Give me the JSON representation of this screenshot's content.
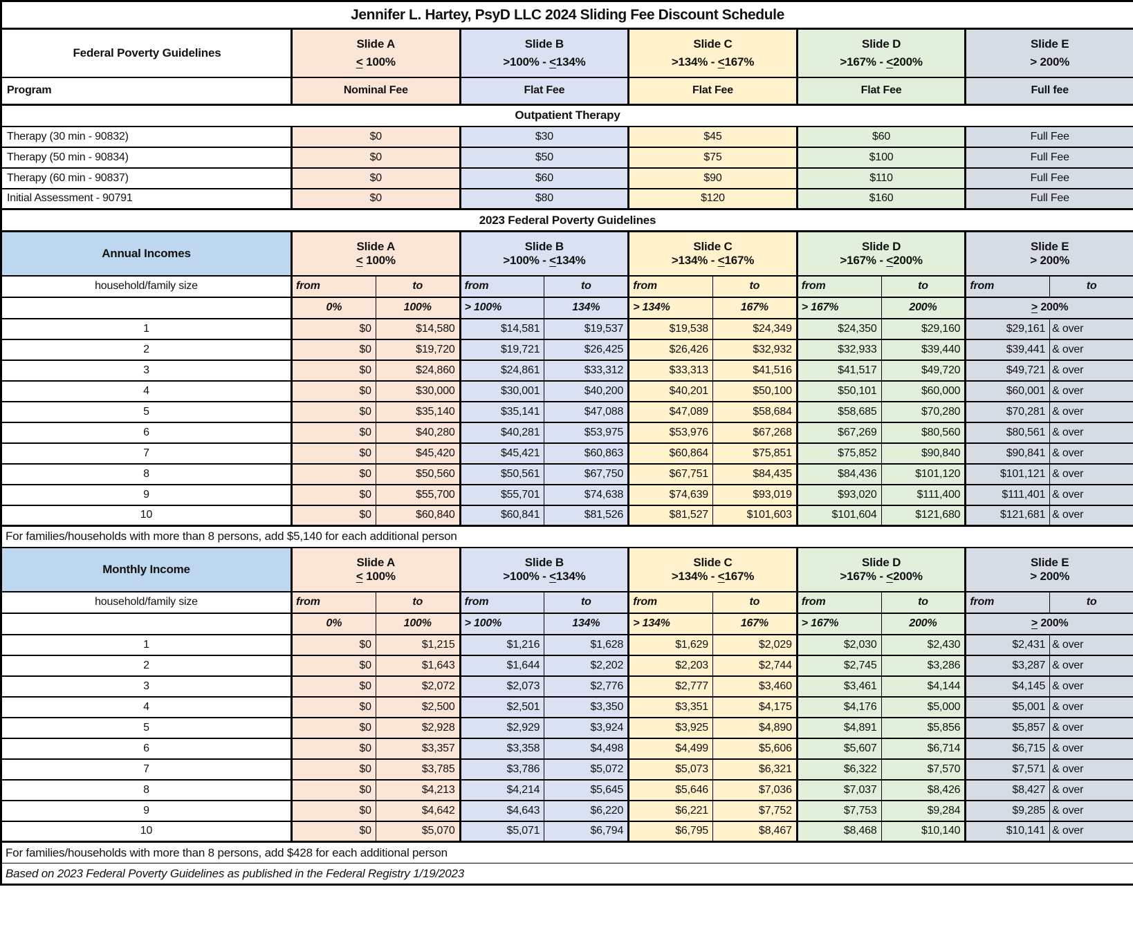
{
  "title": "Jennifer L. Hartey, PsyD LLC 2024 Sliding Fee Discount Schedule",
  "colors": {
    "slide_a_bg": "#FBE5D6",
    "slide_b_bg": "#D9E1F2",
    "slide_c_bg": "#FFF2CC",
    "slide_d_bg": "#E2EFDA",
    "slide_e_bg": "#D6DCE4",
    "income_header_bg": "#BDD7EE",
    "border": "#000000",
    "text": "#111111"
  },
  "slides": [
    {
      "label": "Slide A",
      "range": "≤ 100%",
      "program": "Nominal Fee"
    },
    {
      "label": "Slide B",
      "range": ">100%  -  ≤134%",
      "program": "Flat Fee"
    },
    {
      "label": "Slide C",
      "range": ">134%  -  ≤167%",
      "program": "Flat Fee"
    },
    {
      "label": "Slide D",
      "range": ">167%  -  ≤200%",
      "program": "Flat Fee"
    },
    {
      "label": "Slide E",
      "range": "> 200%",
      "program": "Full fee"
    }
  ],
  "fee_table": {
    "col1_header": "Federal Poverty Guidelines",
    "program_label": "Program",
    "section_title": "Outpatient Therapy",
    "rows": [
      {
        "label": "Therapy (30 min - 90832)",
        "fees": [
          "$0",
          "$30",
          "$45",
          "$60",
          "Full Fee"
        ]
      },
      {
        "label": "Therapy (50 min - 90834)",
        "fees": [
          "$0",
          "$50",
          "$75",
          "$100",
          "Full Fee"
        ]
      },
      {
        "label": "Therapy (60 min - 90837)",
        "fees": [
          "$0",
          "$60",
          "$90",
          "$110",
          "Full Fee"
        ]
      },
      {
        "label": "Initial Assessment - 90791",
        "fees": [
          "$0",
          "$80",
          "$120",
          "$160",
          "Full Fee"
        ]
      }
    ]
  },
  "fpg_title": "2023 Federal Poverty Guidelines",
  "labels": {
    "household": "household/family size",
    "from": "from",
    "to": "to"
  },
  "pct_headers": [
    "0%",
    "100%",
    "> 100%",
    "134%",
    "> 134%",
    "167%",
    "> 167%",
    "200%",
    "≥ 200%"
  ],
  "annual": {
    "header": "Annual Incomes",
    "note": "For families/households with more than 8 persons, add $5,140 for each additional person",
    "rows": [
      {
        "size": "1",
        "values": [
          "$0",
          "$14,580",
          "$14,581",
          "$19,537",
          "$19,538",
          "$24,349",
          "$24,350",
          "$29,160",
          "$29,161",
          "& over"
        ]
      },
      {
        "size": "2",
        "values": [
          "$0",
          "$19,720",
          "$19,721",
          "$26,425",
          "$26,426",
          "$32,932",
          "$32,933",
          "$39,440",
          "$39,441",
          "& over"
        ]
      },
      {
        "size": "3",
        "values": [
          "$0",
          "$24,860",
          "$24,861",
          "$33,312",
          "$33,313",
          "$41,516",
          "$41,517",
          "$49,720",
          "$49,721",
          "& over"
        ]
      },
      {
        "size": "4",
        "values": [
          "$0",
          "$30,000",
          "$30,001",
          "$40,200",
          "$40,201",
          "$50,100",
          "$50,101",
          "$60,000",
          "$60,001",
          "& over"
        ]
      },
      {
        "size": "5",
        "values": [
          "$0",
          "$35,140",
          "$35,141",
          "$47,088",
          "$47,089",
          "$58,684",
          "$58,685",
          "$70,280",
          "$70,281",
          "& over"
        ]
      },
      {
        "size": "6",
        "values": [
          "$0",
          "$40,280",
          "$40,281",
          "$53,975",
          "$53,976",
          "$67,268",
          "$67,269",
          "$80,560",
          "$80,561",
          "& over"
        ]
      },
      {
        "size": "7",
        "values": [
          "$0",
          "$45,420",
          "$45,421",
          "$60,863",
          "$60,864",
          "$75,851",
          "$75,852",
          "$90,840",
          "$90,841",
          "& over"
        ]
      },
      {
        "size": "8",
        "values": [
          "$0",
          "$50,560",
          "$50,561",
          "$67,750",
          "$67,751",
          "$84,435",
          "$84,436",
          "$101,120",
          "$101,121",
          "& over"
        ]
      },
      {
        "size": "9",
        "values": [
          "$0",
          "$55,700",
          "$55,701",
          "$74,638",
          "$74,639",
          "$93,019",
          "$93,020",
          "$111,400",
          "$111,401",
          "& over"
        ]
      },
      {
        "size": "10",
        "values": [
          "$0",
          "$60,840",
          "$60,841",
          "$81,526",
          "$81,527",
          "$101,603",
          "$101,604",
          "$121,680",
          "$121,681",
          "& over"
        ]
      }
    ]
  },
  "monthly": {
    "header": "Monthly Income",
    "note": "For families/households with more than 8 persons, add $428 for each additional person",
    "rows": [
      {
        "size": "1",
        "values": [
          "$0",
          "$1,215",
          "$1,216",
          "$1,628",
          "$1,629",
          "$2,029",
          "$2,030",
          "$2,430",
          "$2,431",
          "& over"
        ]
      },
      {
        "size": "2",
        "values": [
          "$0",
          "$1,643",
          "$1,644",
          "$2,202",
          "$2,203",
          "$2,744",
          "$2,745",
          "$3,286",
          "$3,287",
          "& over"
        ]
      },
      {
        "size": "3",
        "values": [
          "$0",
          "$2,072",
          "$2,073",
          "$2,776",
          "$2,777",
          "$3,460",
          "$3,461",
          "$4,144",
          "$4,145",
          "& over"
        ]
      },
      {
        "size": "4",
        "values": [
          "$0",
          "$2,500",
          "$2,501",
          "$3,350",
          "$3,351",
          "$4,175",
          "$4,176",
          "$5,000",
          "$5,001",
          "& over"
        ]
      },
      {
        "size": "5",
        "values": [
          "$0",
          "$2,928",
          "$2,929",
          "$3,924",
          "$3,925",
          "$4,890",
          "$4,891",
          "$5,856",
          "$5,857",
          "& over"
        ]
      },
      {
        "size": "6",
        "values": [
          "$0",
          "$3,357",
          "$3,358",
          "$4,498",
          "$4,499",
          "$5,606",
          "$5,607",
          "$6,714",
          "$6,715",
          "& over"
        ]
      },
      {
        "size": "7",
        "values": [
          "$0",
          "$3,785",
          "$3,786",
          "$5,072",
          "$5,073",
          "$6,321",
          "$6,322",
          "$7,570",
          "$7,571",
          "& over"
        ]
      },
      {
        "size": "8",
        "values": [
          "$0",
          "$4,213",
          "$4,214",
          "$5,645",
          "$5,646",
          "$7,036",
          "$7,037",
          "$8,426",
          "$8,427",
          "& over"
        ]
      },
      {
        "size": "9",
        "values": [
          "$0",
          "$4,642",
          "$4,643",
          "$6,220",
          "$6,221",
          "$7,752",
          "$7,753",
          "$9,284",
          "$9,285",
          "& over"
        ]
      },
      {
        "size": "10",
        "values": [
          "$0",
          "$5,070",
          "$5,071",
          "$6,794",
          "$6,795",
          "$8,467",
          "$8,468",
          "$10,140",
          "$10,141",
          "& over"
        ]
      }
    ]
  },
  "footer_note": "Based on 2023 Federal Poverty Guidelines as published in the Federal Registry 1/19/2023"
}
